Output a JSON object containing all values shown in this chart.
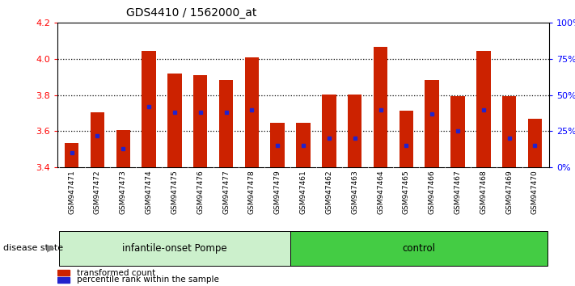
{
  "title": "GDS4410 / 1562000_at",
  "samples": [
    "GSM947471",
    "GSM947472",
    "GSM947473",
    "GSM947474",
    "GSM947475",
    "GSM947476",
    "GSM947477",
    "GSM947478",
    "GSM947479",
    "GSM947461",
    "GSM947462",
    "GSM947463",
    "GSM947464",
    "GSM947465",
    "GSM947466",
    "GSM947467",
    "GSM947468",
    "GSM947469",
    "GSM947470"
  ],
  "bar_heights": [
    3.535,
    3.705,
    3.605,
    4.045,
    3.92,
    3.91,
    3.885,
    4.01,
    3.645,
    3.645,
    3.805,
    3.805,
    4.065,
    3.715,
    3.885,
    3.795,
    4.045,
    3.795,
    3.67
  ],
  "percentile_ranks": [
    10,
    22,
    13,
    42,
    38,
    38,
    38,
    40,
    15,
    15,
    20,
    20,
    40,
    15,
    37,
    25,
    40,
    20,
    15
  ],
  "groups": [
    "infantile-onset Pompe",
    "infantile-onset Pompe",
    "infantile-onset Pompe",
    "infantile-onset Pompe",
    "infantile-onset Pompe",
    "infantile-onset Pompe",
    "infantile-onset Pompe",
    "infantile-onset Pompe",
    "infantile-onset Pompe",
    "control",
    "control",
    "control",
    "control",
    "control",
    "control",
    "control",
    "control",
    "control",
    "control"
  ],
  "group_order": [
    "infantile-onset Pompe",
    "control"
  ],
  "group_colors": {
    "infantile-onset Pompe": "#ccf0cc",
    "control": "#44cc44"
  },
  "bar_color": "#cc2200",
  "marker_color": "#2222cc",
  "baseline": 3.4,
  "ylim_left": [
    3.4,
    4.2
  ],
  "ylim_right": [
    0,
    100
  ],
  "yticks_left": [
    3.4,
    3.6,
    3.8,
    4.0,
    4.2
  ],
  "yticks_right": [
    0,
    25,
    50,
    75,
    100
  ],
  "legend_items": [
    "transformed count",
    "percentile rank within the sample"
  ],
  "disease_state_label": "disease state"
}
